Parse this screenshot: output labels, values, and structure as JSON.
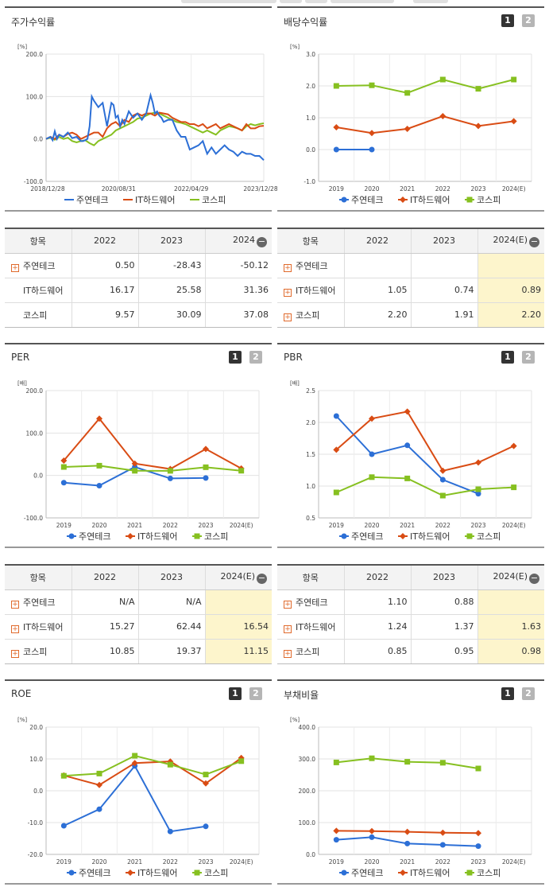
{
  "colors": {
    "s1": "#2c6fd6",
    "s2": "#d94c14",
    "s3": "#86c020"
  },
  "buttons": {
    "one": "1",
    "two": "2"
  },
  "legend_names": [
    "주연테크",
    "IT하드웨어",
    "코스피"
  ],
  "chart_data": [
    {
      "id": "returns",
      "type": "line",
      "title": "주가수익률",
      "unit": "[%]",
      "ylim": [
        -100,
        200
      ],
      "yticks": [
        "200.0",
        "100.0",
        "0.0",
        "-100.0"
      ],
      "xticks": [
        "2018/12/28",
        "2020/08/31",
        "2022/04/29",
        "2023/12/28"
      ],
      "x_range": [
        0,
        100
      ],
      "series": [
        {
          "name": "주연테크",
          "x": [
            0,
            2,
            3,
            4,
            5,
            6,
            8,
            10,
            12,
            14,
            16,
            17,
            18,
            19,
            20,
            21,
            22,
            24,
            26,
            28,
            30,
            31,
            32,
            33,
            34,
            35,
            36,
            38,
            40,
            42,
            44,
            46,
            48,
            49,
            50,
            51,
            52,
            53,
            54,
            56,
            58,
            60,
            62,
            64,
            66,
            68,
            70,
            72,
            74,
            76,
            78,
            80,
            82,
            84,
            86,
            88,
            90,
            92,
            94,
            96,
            98,
            100
          ],
          "y": [
            0,
            5,
            -3,
            18,
            0,
            10,
            5,
            15,
            2,
            5,
            -5,
            -5,
            -3,
            0,
            30,
            100,
            90,
            75,
            85,
            30,
            85,
            80,
            50,
            55,
            30,
            45,
            35,
            65,
            50,
            60,
            45,
            60,
            103,
            85,
            60,
            65,
            55,
            50,
            40,
            45,
            45,
            20,
            5,
            5,
            -25,
            -20,
            -15,
            -5,
            -35,
            -20,
            -35,
            -25,
            -15,
            -25,
            -30,
            -40,
            -30,
            -35,
            -35,
            -40,
            -40,
            -50
          ]
        },
        {
          "name": "IT하드웨어",
          "x": [
            0,
            2,
            4,
            6,
            8,
            10,
            12,
            14,
            16,
            18,
            20,
            22,
            24,
            26,
            28,
            30,
            32,
            34,
            36,
            38,
            40,
            42,
            44,
            46,
            48,
            50,
            52,
            54,
            56,
            58,
            60,
            62,
            64,
            66,
            68,
            70,
            72,
            74,
            76,
            78,
            80,
            82,
            84,
            86,
            88,
            90,
            92,
            94,
            96,
            98,
            100
          ],
          "y": [
            0,
            5,
            0,
            10,
            5,
            12,
            15,
            10,
            0,
            5,
            10,
            15,
            15,
            5,
            25,
            35,
            40,
            30,
            45,
            40,
            55,
            60,
            55,
            60,
            60,
            55,
            62,
            60,
            58,
            50,
            45,
            40,
            40,
            35,
            35,
            30,
            35,
            25,
            30,
            35,
            25,
            30,
            35,
            30,
            25,
            20,
            35,
            25,
            25,
            30,
            31
          ],
          "label_color_note": ""
        },
        {
          "name": "코스피",
          "x": [
            0,
            2,
            4,
            6,
            8,
            10,
            12,
            14,
            16,
            18,
            20,
            22,
            24,
            26,
            28,
            30,
            32,
            34,
            36,
            38,
            40,
            42,
            44,
            46,
            48,
            50,
            52,
            54,
            56,
            58,
            60,
            62,
            64,
            66,
            68,
            70,
            72,
            74,
            76,
            78,
            80,
            82,
            84,
            86,
            88,
            90,
            92,
            94,
            96,
            98,
            100
          ],
          "y": [
            0,
            3,
            -2,
            5,
            0,
            3,
            -5,
            -8,
            -5,
            -3,
            -10,
            -15,
            -5,
            0,
            5,
            10,
            20,
            25,
            30,
            35,
            40,
            48,
            50,
            55,
            60,
            62,
            60,
            55,
            50,
            45,
            40,
            38,
            35,
            30,
            25,
            20,
            15,
            20,
            15,
            10,
            20,
            25,
            30,
            28,
            25,
            20,
            30,
            35,
            32,
            35,
            37
          ]
        }
      ]
    },
    {
      "id": "dividend",
      "type": "line",
      "title": "배당수익률",
      "unit": "[%]",
      "ylim": [
        -1,
        3
      ],
      "yticks": [
        "3.0",
        "2.0",
        "1.0",
        "0.0",
        "-1.0"
      ],
      "categories": [
        "2019",
        "2020",
        "2021",
        "2022",
        "2023",
        "2024(E)"
      ],
      "series": [
        {
          "name": "주연테크",
          "values": [
            0.0,
            0.0,
            null,
            null,
            null,
            null
          ]
        },
        {
          "name": "IT하드웨어",
          "values": [
            0.7,
            0.52,
            0.65,
            1.05,
            0.74,
            0.89
          ]
        },
        {
          "name": "코스피",
          "values": [
            2.0,
            2.02,
            1.78,
            2.2,
            1.91,
            2.2
          ]
        }
      ]
    },
    {
      "id": "per",
      "type": "line",
      "title": "PER",
      "unit": "[배]",
      "ylim": [
        -100,
        200
      ],
      "yticks": [
        "200.0",
        "100.0",
        "0.0",
        "-100.0"
      ],
      "categories": [
        "2019",
        "2020",
        "2021",
        "2022",
        "2023",
        "2024(E)"
      ],
      "series": [
        {
          "name": "주연테크",
          "values": [
            -17,
            -24,
            20,
            -7,
            -6,
            null
          ]
        },
        {
          "name": "IT하드웨어",
          "values": [
            35,
            134,
            28,
            15.27,
            62.44,
            16.54
          ]
        },
        {
          "name": "코스피",
          "values": [
            20,
            23,
            11,
            10.85,
            19.37,
            11.15
          ]
        }
      ]
    },
    {
      "id": "pbr",
      "type": "line",
      "title": "PBR",
      "unit": "[배]",
      "ylim": [
        0.5,
        2.5
      ],
      "yticks": [
        "2.5",
        "2.0",
        "1.5",
        "1.0",
        "0.5"
      ],
      "categories": [
        "2019",
        "2020",
        "2021",
        "2022",
        "2023",
        "2024(E)"
      ],
      "series": [
        {
          "name": "주연테크",
          "values": [
            2.1,
            1.5,
            1.64,
            1.1,
            0.88,
            null
          ]
        },
        {
          "name": "IT하드웨어",
          "values": [
            1.57,
            2.06,
            2.17,
            1.24,
            1.37,
            1.63
          ]
        },
        {
          "name": "코스피",
          "values": [
            0.9,
            1.14,
            1.12,
            0.85,
            0.95,
            0.98
          ]
        }
      ]
    },
    {
      "id": "roe",
      "type": "line",
      "title": "ROE",
      "unit": "[%]",
      "ylim": [
        -20,
        20
      ],
      "yticks": [
        "20.0",
        "10.0",
        "0.0",
        "-10.0",
        "-20.0"
      ],
      "categories": [
        "2019",
        "2020",
        "2021",
        "2022",
        "2023",
        "2024(E)"
      ],
      "series": [
        {
          "name": "주연테크",
          "values": [
            -11,
            -5.8,
            7.8,
            -12.8,
            -11.2,
            null
          ]
        },
        {
          "name": "IT하드웨어",
          "values": [
            4.8,
            1.8,
            8.7,
            9.2,
            2.3,
            10.3
          ]
        },
        {
          "name": "코스피",
          "values": [
            4.7,
            5.4,
            11,
            8.2,
            5.1,
            9.3
          ]
        }
      ]
    },
    {
      "id": "debt",
      "type": "line",
      "title": "부채비율",
      "unit": "[%]",
      "ylim": [
        0,
        400
      ],
      "yticks": [
        "400.0",
        "300.0",
        "200.0",
        "100.0",
        "0.0"
      ],
      "categories": [
        "2019",
        "2020",
        "2021",
        "2022",
        "2023",
        "2024(E)"
      ],
      "series": [
        {
          "name": "주연테크",
          "values": [
            46,
            54,
            34,
            30,
            26,
            null
          ]
        },
        {
          "name": "IT하드웨어",
          "values": [
            74,
            73,
            71,
            68,
            67,
            null
          ]
        },
        {
          "name": "코스피",
          "values": [
            289,
            302,
            291,
            288,
            270,
            null
          ]
        }
      ]
    }
  ],
  "tables": {
    "returns": {
      "headers": [
        "항목",
        "2022",
        "2023",
        "2024"
      ],
      "rows": [
        {
          "name": "주연테크",
          "plus": true,
          "values": [
            "0.50",
            "-28.43",
            "-50.12"
          ]
        },
        {
          "name": "IT하드웨어",
          "plus": false,
          "values": [
            "16.17",
            "25.58",
            "31.36"
          ]
        },
        {
          "name": "코스피",
          "plus": false,
          "values": [
            "9.57",
            "30.09",
            "37.08"
          ]
        }
      ]
    },
    "dividend": {
      "headers": [
        "항목",
        "2022",
        "2023",
        "2024(E)"
      ],
      "rows": [
        {
          "name": "주연테크",
          "plus": true,
          "values": [
            "",
            "",
            ""
          ]
        },
        {
          "name": "IT하드웨어",
          "plus": true,
          "values": [
            "1.05",
            "0.74",
            "0.89"
          ]
        },
        {
          "name": "코스피",
          "plus": true,
          "values": [
            "2.20",
            "1.91",
            "2.20"
          ]
        }
      ]
    },
    "per": {
      "headers": [
        "항목",
        "2022",
        "2023",
        "2024(E)"
      ],
      "rows": [
        {
          "name": "주연테크",
          "plus": true,
          "values": [
            "N/A",
            "N/A",
            ""
          ]
        },
        {
          "name": "IT하드웨어",
          "plus": true,
          "values": [
            "15.27",
            "62.44",
            "16.54"
          ]
        },
        {
          "name": "코스피",
          "plus": true,
          "values": [
            "10.85",
            "19.37",
            "11.15"
          ]
        }
      ]
    },
    "pbr": {
      "headers": [
        "항목",
        "2022",
        "2023",
        "2024(E)"
      ],
      "rows": [
        {
          "name": "주연테크",
          "plus": true,
          "values": [
            "1.10",
            "0.88",
            ""
          ]
        },
        {
          "name": "IT하드웨어",
          "plus": true,
          "values": [
            "1.24",
            "1.37",
            "1.63"
          ]
        },
        {
          "name": "코스피",
          "plus": true,
          "values": [
            "0.85",
            "0.95",
            "0.98"
          ]
        }
      ]
    }
  }
}
